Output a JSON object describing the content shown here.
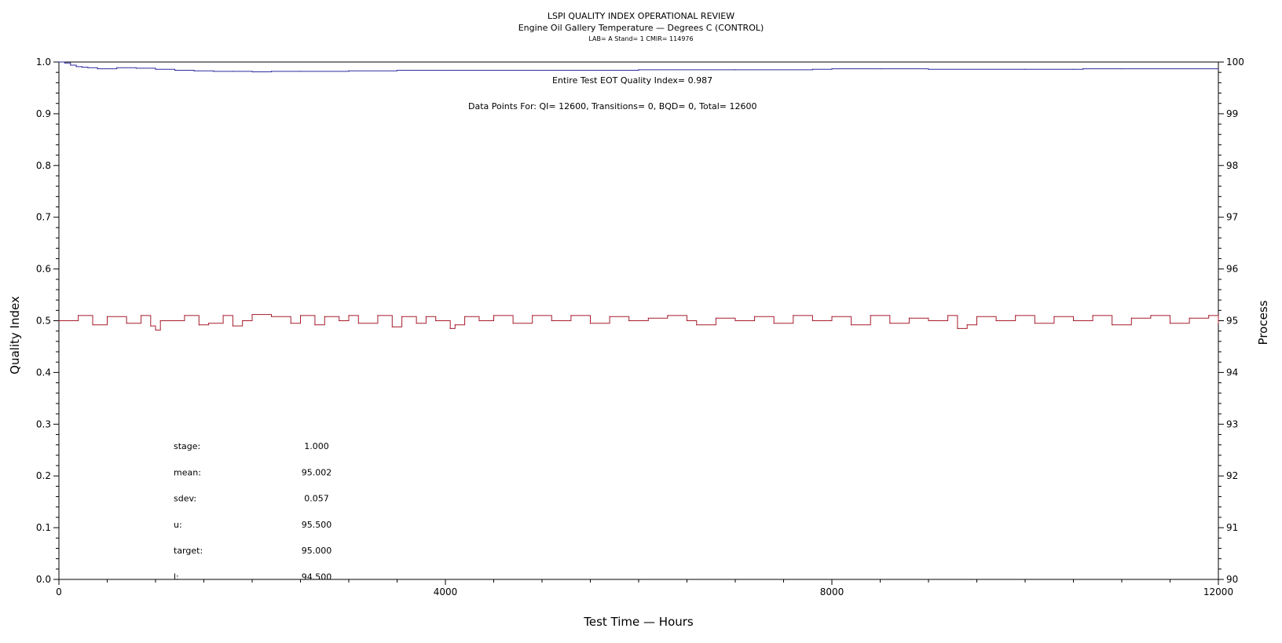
{
  "chart_data": {
    "type": "line",
    "title": "LSPI QUALITY INDEX OPERATIONAL REVIEW",
    "subtitle": "Engine Oil Gallery Temperature — Degrees C (CONTROL)",
    "info_line": "LAB= A Stand= 1 CMIR= 114976",
    "xlabel": "Test Time — Hours",
    "ylabel_left": "Quality Index",
    "ylabel_right": "Process",
    "xlim": [
      0,
      12000
    ],
    "ylim_left": [
      0.0,
      1.0
    ],
    "ylim_right": [
      90,
      100
    ],
    "x_ticks": [
      "0",
      "4000",
      "8000",
      "12000"
    ],
    "x_tick_values": [
      0,
      4000,
      8000,
      12000
    ],
    "y_left_ticks": [
      "0.0",
      "0.1",
      "0.2",
      "0.3",
      "0.4",
      "0.5",
      "0.6",
      "0.7",
      "0.8",
      "0.9",
      "1.0"
    ],
    "y_left_tick_values": [
      0.0,
      0.1,
      0.2,
      0.3,
      0.4,
      0.5,
      0.6,
      0.7,
      0.8,
      0.9,
      1.0
    ],
    "y_right_ticks": [
      "90",
      "91",
      "92",
      "93",
      "94",
      "95",
      "96",
      "97",
      "98",
      "99",
      "100"
    ],
    "y_right_tick_values": [
      90,
      91,
      92,
      93,
      94,
      95,
      96,
      97,
      98,
      99,
      100
    ],
    "annotation_qi": "Entire Test EOT Quality Index=   0.987",
    "annotation_points": "Data Points For: QI= 12600, Transitions=     0, BQD=     0, Total= 12600",
    "stats": [
      {
        "label": "stage:",
        "value": "1.000"
      },
      {
        "label": "mean:",
        "value": "95.002"
      },
      {
        "label": "sdev:",
        "value": "0.057"
      },
      {
        "label": "u:",
        "value": "95.500"
      },
      {
        "label": "target:",
        "value": "95.000"
      },
      {
        "label": "l:",
        "value": "94.500"
      }
    ],
    "series": [
      {
        "axis": "left",
        "color": "#2b2b9e",
        "x": [
          0,
          60,
          120,
          180,
          240,
          300,
          400,
          600,
          800,
          1000,
          1200,
          1400,
          1600,
          1800,
          2000,
          2200,
          2500,
          3000,
          3500,
          4000,
          5000,
          6000,
          7000,
          7800,
          8000,
          8500,
          9000,
          10000,
          10500,
          10600,
          11000,
          12000
        ],
        "values": [
          1.0,
          0.998,
          0.994,
          0.991,
          0.99,
          0.989,
          0.987,
          0.989,
          0.988,
          0.986,
          0.984,
          0.983,
          0.982,
          0.982,
          0.981,
          0.982,
          0.982,
          0.983,
          0.984,
          0.984,
          0.984,
          0.985,
          0.985,
          0.986,
          0.987,
          0.987,
          0.986,
          0.986,
          0.986,
          0.987,
          0.987,
          0.987
        ]
      },
      {
        "axis": "right",
        "color": "#a51c2c",
        "x": [
          0,
          200,
          350,
          500,
          700,
          850,
          950,
          1000,
          1050,
          1150,
          1300,
          1450,
          1550,
          1700,
          1800,
          1900,
          2000,
          2200,
          2400,
          2500,
          2650,
          2750,
          2900,
          3000,
          3100,
          3300,
          3450,
          3550,
          3700,
          3800,
          3900,
          4050,
          4100,
          4200,
          4350,
          4500,
          4700,
          4900,
          5100,
          5300,
          5500,
          5700,
          5900,
          6100,
          6300,
          6500,
          6600,
          6800,
          7000,
          7200,
          7400,
          7600,
          7800,
          8000,
          8200,
          8400,
          8600,
          8800,
          9000,
          9200,
          9300,
          9400,
          9500,
          9700,
          9900,
          10100,
          10300,
          10500,
          10700,
          10900,
          11100,
          11300,
          11500,
          11700,
          11900,
          12000
        ],
        "values": [
          95.0,
          95.1,
          94.92,
          95.08,
          94.95,
          95.1,
          94.9,
          94.82,
          95.0,
          95.0,
          95.1,
          94.92,
          94.95,
          95.1,
          94.9,
          95.0,
          95.12,
          95.08,
          94.95,
          95.1,
          94.92,
          95.08,
          95.0,
          95.1,
          94.95,
          95.1,
          94.88,
          95.08,
          94.95,
          95.08,
          95.0,
          94.85,
          94.92,
          95.08,
          95.0,
          95.1,
          94.95,
          95.1,
          95.0,
          95.1,
          94.95,
          95.08,
          95.0,
          95.05,
          95.1,
          95.0,
          94.92,
          95.05,
          95.0,
          95.08,
          94.95,
          95.1,
          95.0,
          95.08,
          94.92,
          95.1,
          94.95,
          95.05,
          95.0,
          95.1,
          94.85,
          94.92,
          95.08,
          95.0,
          95.1,
          94.95,
          95.08,
          95.0,
          95.1,
          94.92,
          95.05,
          95.1,
          94.95,
          95.05,
          95.1,
          94.95
        ]
      }
    ]
  }
}
